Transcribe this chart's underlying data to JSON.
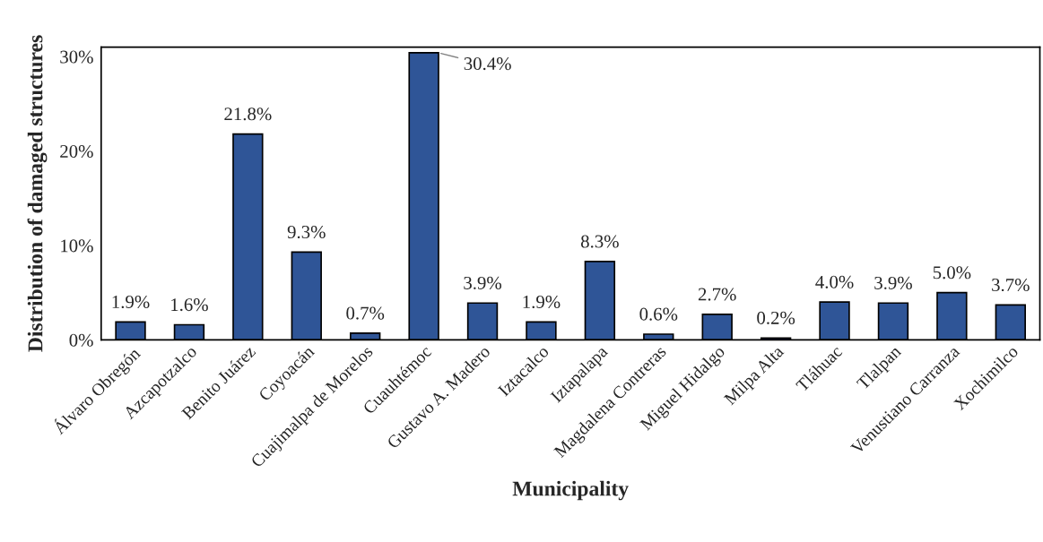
{
  "chart_data": {
    "type": "bar",
    "xlabel": "Municipality",
    "ylabel": "Distribution of damaged structures",
    "categories": [
      "Álvaro Obregón",
      "Azcapotzalco",
      "Benito Juárez",
      "Coyoacán",
      "Cuajimalpa de Morelos",
      "Cuauhtémoc",
      "Gustavo A. Madero",
      "Iztacalco",
      "Iztapalapa",
      "Magdalena Contreras",
      "Miguel Hidalgo",
      "Milpa Alta",
      "Tláhuac",
      "Tlalpan",
      "Venustiano Carranza",
      "Xochimilco"
    ],
    "values": [
      1.9,
      1.6,
      21.8,
      9.3,
      0.7,
      30.4,
      3.9,
      1.9,
      8.3,
      0.6,
      2.7,
      0.2,
      4.0,
      3.9,
      5.0,
      3.7
    ],
    "value_labels": [
      "1.9%",
      "1.6%",
      "21.8%",
      "9.3%",
      "0.7%",
      "30.4%",
      "3.9%",
      "1.9%",
      "8.3%",
      "0.6%",
      "2.7%",
      "0.2%",
      "4.0%",
      "3.9%",
      "5.0%",
      "3.7%"
    ],
    "color": "#2f5597",
    "ylim": [
      0,
      31
    ],
    "yticks": [
      {
        "value": 0,
        "label": "0%"
      },
      {
        "value": 10,
        "label": "10%"
      },
      {
        "value": 20,
        "label": "20%"
      },
      {
        "value": 30,
        "label": "30%"
      }
    ],
    "grid": false,
    "legend": false
  }
}
